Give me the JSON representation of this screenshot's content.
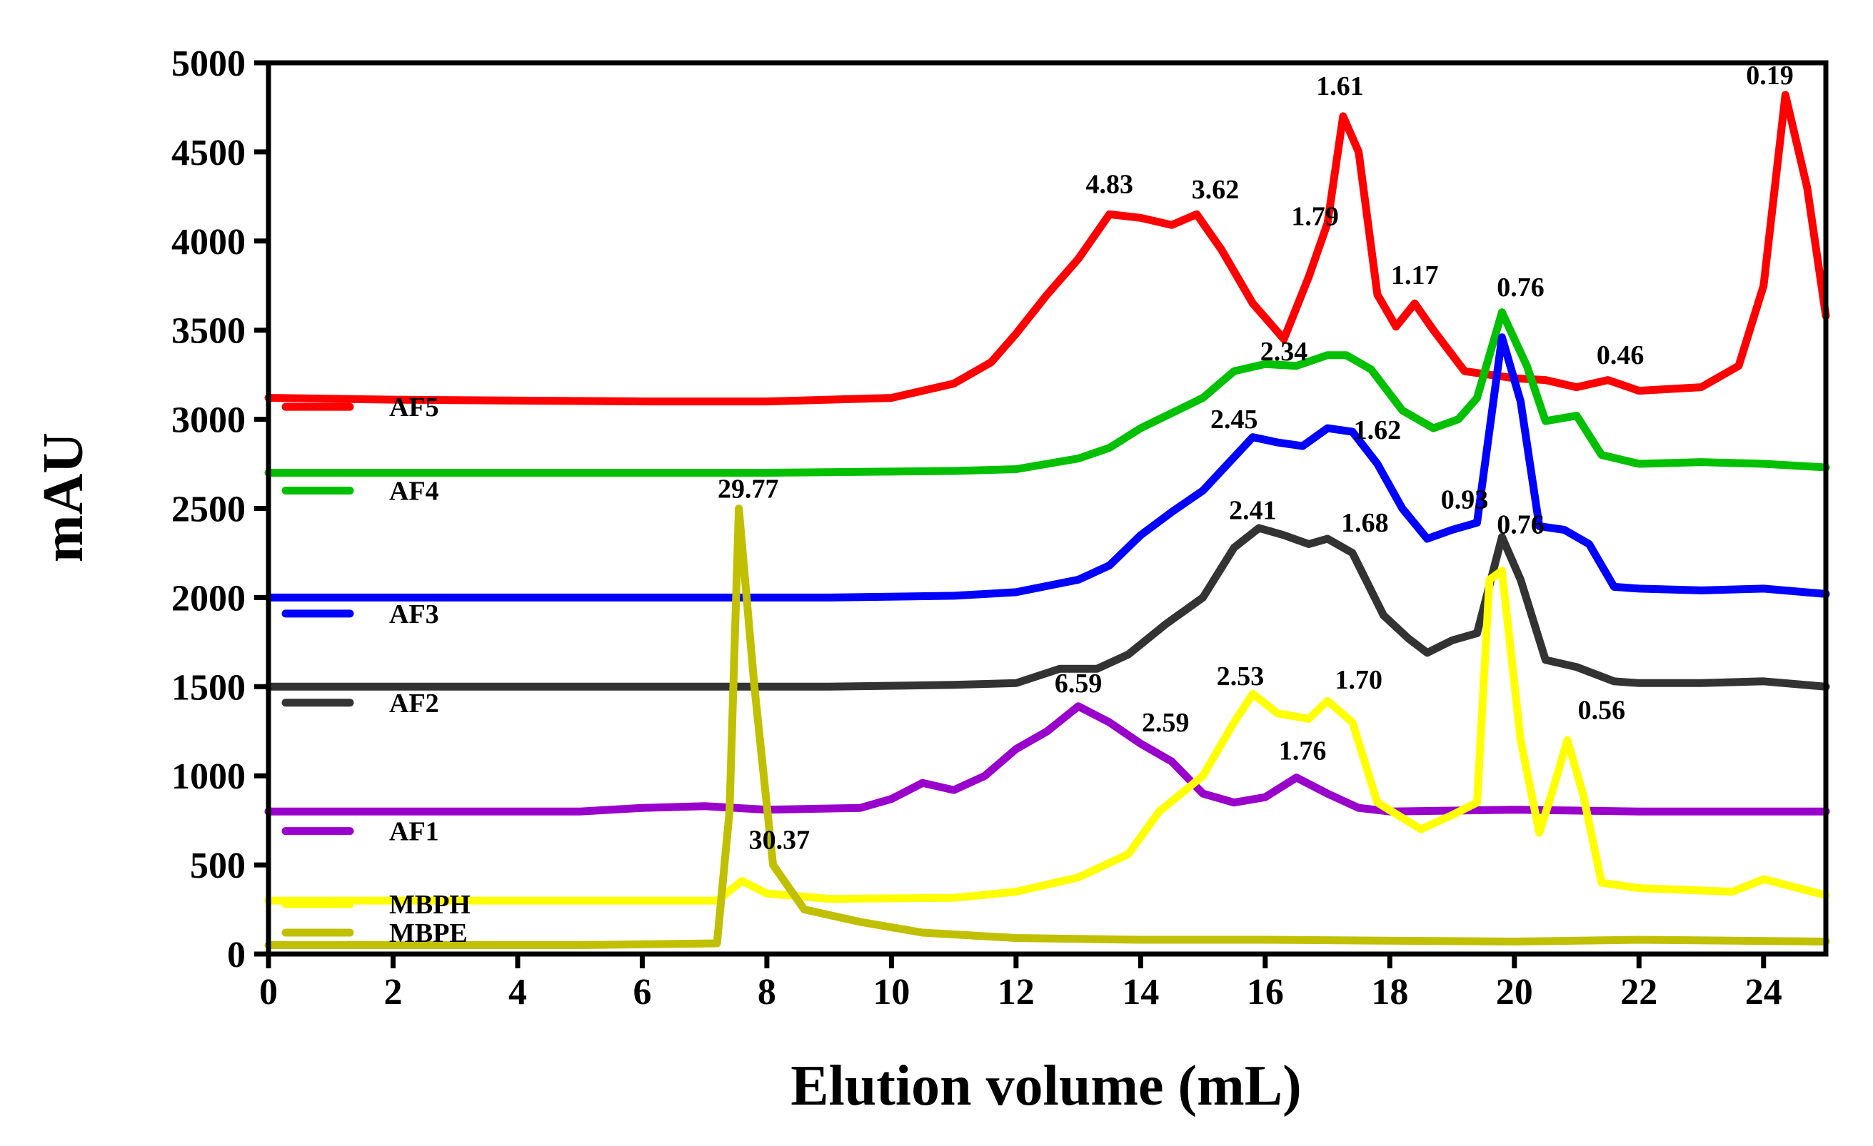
{
  "chart_data": {
    "type": "line",
    "title": "",
    "xlabel": "Elution volume (mL)",
    "ylabel": "mAU",
    "xlim": [
      0,
      25
    ],
    "ylim": [
      0,
      5000
    ],
    "xticks": [
      0,
      2,
      4,
      6,
      8,
      10,
      12,
      14,
      16,
      18,
      20,
      22,
      24
    ],
    "yticks": [
      0,
      500,
      1000,
      1500,
      2000,
      2500,
      3000,
      3500,
      4000,
      4500,
      5000
    ],
    "legend_position": "left",
    "series": [
      {
        "name": "AF5",
        "color": "#ff0000",
        "points": [
          [
            0,
            3120
          ],
          [
            2,
            3110
          ],
          [
            4,
            3105
          ],
          [
            6,
            3100
          ],
          [
            8,
            3100
          ],
          [
            10,
            3120
          ],
          [
            11,
            3200
          ],
          [
            11.6,
            3320
          ],
          [
            12,
            3480
          ],
          [
            12.5,
            3700
          ],
          [
            13,
            3900
          ],
          [
            13.5,
            4150
          ],
          [
            14,
            4130
          ],
          [
            14.5,
            4090
          ],
          [
            14.9,
            4150
          ],
          [
            15.3,
            3950
          ],
          [
            15.8,
            3650
          ],
          [
            16.3,
            3450
          ],
          [
            16.7,
            3800
          ],
          [
            17,
            4100
          ],
          [
            17.25,
            4700
          ],
          [
            17.5,
            4500
          ],
          [
            17.8,
            3700
          ],
          [
            18.1,
            3520
          ],
          [
            18.4,
            3650
          ],
          [
            18.7,
            3500
          ],
          [
            19.2,
            3270
          ],
          [
            20,
            3230
          ],
          [
            20.5,
            3220
          ],
          [
            21,
            3180
          ],
          [
            21.5,
            3220
          ],
          [
            22,
            3160
          ],
          [
            23,
            3180
          ],
          [
            23.6,
            3300
          ],
          [
            24,
            3750
          ],
          [
            24.35,
            4820
          ],
          [
            24.7,
            4300
          ],
          [
            25,
            3580
          ]
        ]
      },
      {
        "name": "AF4",
        "color": "#00c000",
        "points": [
          [
            0,
            2700
          ],
          [
            4,
            2700
          ],
          [
            8,
            2700
          ],
          [
            11,
            2710
          ],
          [
            12,
            2720
          ],
          [
            13,
            2780
          ],
          [
            13.5,
            2840
          ],
          [
            14,
            2950
          ],
          [
            15,
            3120
          ],
          [
            15.5,
            3270
          ],
          [
            16,
            3310
          ],
          [
            16.5,
            3300
          ],
          [
            17,
            3360
          ],
          [
            17.3,
            3360
          ],
          [
            17.7,
            3280
          ],
          [
            18.2,
            3050
          ],
          [
            18.7,
            2950
          ],
          [
            19.1,
            3000
          ],
          [
            19.4,
            3120
          ],
          [
            19.8,
            3600
          ],
          [
            20.2,
            3300
          ],
          [
            20.5,
            2990
          ],
          [
            21,
            3020
          ],
          [
            21.4,
            2800
          ],
          [
            22,
            2750
          ],
          [
            23,
            2760
          ],
          [
            24,
            2750
          ],
          [
            25,
            2730
          ]
        ]
      },
      {
        "name": "AF3",
        "color": "#0000ff",
        "points": [
          [
            0,
            2000
          ],
          [
            6,
            2000
          ],
          [
            9,
            2000
          ],
          [
            11,
            2010
          ],
          [
            12,
            2030
          ],
          [
            13,
            2100
          ],
          [
            13.5,
            2180
          ],
          [
            14,
            2350
          ],
          [
            14.5,
            2480
          ],
          [
            15,
            2600
          ],
          [
            15.8,
            2900
          ],
          [
            16.2,
            2870
          ],
          [
            16.6,
            2850
          ],
          [
            17,
            2950
          ],
          [
            17.4,
            2930
          ],
          [
            17.8,
            2750
          ],
          [
            18.2,
            2500
          ],
          [
            18.6,
            2330
          ],
          [
            19,
            2380
          ],
          [
            19.4,
            2420
          ],
          [
            19.8,
            3460
          ],
          [
            20.1,
            3100
          ],
          [
            20.4,
            2400
          ],
          [
            20.8,
            2380
          ],
          [
            21.2,
            2300
          ],
          [
            21.6,
            2060
          ],
          [
            22,
            2050
          ],
          [
            23,
            2040
          ],
          [
            24,
            2050
          ],
          [
            25,
            2020
          ]
        ]
      },
      {
        "name": "AF2",
        "color": "#333333",
        "points": [
          [
            0,
            1500
          ],
          [
            6,
            1500
          ],
          [
            9,
            1500
          ],
          [
            11,
            1510
          ],
          [
            12,
            1520
          ],
          [
            12.7,
            1600
          ],
          [
            13.3,
            1600
          ],
          [
            13.8,
            1680
          ],
          [
            14.4,
            1850
          ],
          [
            15,
            2000
          ],
          [
            15.5,
            2280
          ],
          [
            15.9,
            2390
          ],
          [
            16.3,
            2350
          ],
          [
            16.7,
            2300
          ],
          [
            17,
            2330
          ],
          [
            17.4,
            2250
          ],
          [
            17.9,
            1900
          ],
          [
            18.3,
            1770
          ],
          [
            18.6,
            1690
          ],
          [
            19,
            1760
          ],
          [
            19.4,
            1800
          ],
          [
            19.8,
            2340
          ],
          [
            20.1,
            2100
          ],
          [
            20.5,
            1650
          ],
          [
            21,
            1610
          ],
          [
            21.6,
            1530
          ],
          [
            22,
            1520
          ],
          [
            23,
            1520
          ],
          [
            24,
            1530
          ],
          [
            25,
            1500
          ]
        ]
      },
      {
        "name": "AF1",
        "color": "#9900cc",
        "points": [
          [
            0,
            800
          ],
          [
            5,
            800
          ],
          [
            6,
            820
          ],
          [
            7,
            830
          ],
          [
            8,
            810
          ],
          [
            9.5,
            820
          ],
          [
            10,
            870
          ],
          [
            10.5,
            960
          ],
          [
            11,
            920
          ],
          [
            11.5,
            1000
          ],
          [
            12,
            1150
          ],
          [
            12.5,
            1250
          ],
          [
            13,
            1390
          ],
          [
            13.5,
            1300
          ],
          [
            14,
            1180
          ],
          [
            14.5,
            1080
          ],
          [
            15,
            900
          ],
          [
            15.5,
            850
          ],
          [
            16,
            880
          ],
          [
            16.5,
            990
          ],
          [
            17,
            900
          ],
          [
            17.5,
            820
          ],
          [
            18,
            800
          ],
          [
            20,
            810
          ],
          [
            22,
            800
          ],
          [
            25,
            800
          ]
        ]
      },
      {
        "name": "MBPH",
        "color": "#ffff00",
        "points": [
          [
            0,
            300
          ],
          [
            6,
            300
          ],
          [
            7.2,
            300
          ],
          [
            7.6,
            410
          ],
          [
            8,
            340
          ],
          [
            9,
            310
          ],
          [
            11,
            315
          ],
          [
            12,
            350
          ],
          [
            13,
            430
          ],
          [
            13.8,
            560
          ],
          [
            14.3,
            800
          ],
          [
            15,
            1000
          ],
          [
            15.5,
            1300
          ],
          [
            15.8,
            1460
          ],
          [
            16.2,
            1350
          ],
          [
            16.7,
            1320
          ],
          [
            17,
            1420
          ],
          [
            17.4,
            1300
          ],
          [
            17.8,
            850
          ],
          [
            18.5,
            700
          ],
          [
            19,
            780
          ],
          [
            19.4,
            850
          ],
          [
            19.6,
            2100
          ],
          [
            19.8,
            2150
          ],
          [
            20.1,
            1200
          ],
          [
            20.4,
            680
          ],
          [
            20.6,
            900
          ],
          [
            20.85,
            1200
          ],
          [
            21.1,
            900
          ],
          [
            21.4,
            400
          ],
          [
            22,
            370
          ],
          [
            23.5,
            350
          ],
          [
            24,
            420
          ],
          [
            25,
            330
          ]
        ]
      },
      {
        "name": "MBPE",
        "color": "#c0c000",
        "points": [
          [
            0,
            50
          ],
          [
            5,
            50
          ],
          [
            7.2,
            60
          ],
          [
            7.4,
            800
          ],
          [
            7.55,
            2500
          ],
          [
            7.8,
            1500
          ],
          [
            8.1,
            500
          ],
          [
            8.6,
            250
          ],
          [
            9.5,
            180
          ],
          [
            10.5,
            120
          ],
          [
            12,
            90
          ],
          [
            14,
            80
          ],
          [
            16,
            80
          ],
          [
            20,
            70
          ],
          [
            22,
            80
          ],
          [
            25,
            70
          ]
        ]
      }
    ],
    "annotations": [
      {
        "text": "4.83",
        "x": 13.5,
        "y": 4270
      },
      {
        "text": "3.62",
        "x": 15.2,
        "y": 4240
      },
      {
        "text": "1.79",
        "x": 16.8,
        "y": 4090
      },
      {
        "text": "1.61",
        "x": 17.2,
        "y": 4820
      },
      {
        "text": "1.17",
        "x": 18.4,
        "y": 3760
      },
      {
        "text": "0.76",
        "x": 20.1,
        "y": 3690
      },
      {
        "text": "0.46",
        "x": 21.7,
        "y": 3310
      },
      {
        "text": "0.19",
        "x": 24.1,
        "y": 4880
      },
      {
        "text": "2.34",
        "x": 16.3,
        "y": 3330
      },
      {
        "text": "2.45",
        "x": 15.5,
        "y": 2950
      },
      {
        "text": "1.62",
        "x": 17.8,
        "y": 2890
      },
      {
        "text": "2.41",
        "x": 15.8,
        "y": 2440
      },
      {
        "text": "1.68",
        "x": 17.6,
        "y": 2370
      },
      {
        "text": "0.93",
        "x": 19.2,
        "y": 2500
      },
      {
        "text": "0.76",
        "x": 20.1,
        "y": 2360
      },
      {
        "text": "29.77",
        "x": 7.7,
        "y": 2560
      },
      {
        "text": "30.37",
        "x": 8.2,
        "y": 590
      },
      {
        "text": "6.59",
        "x": 13.0,
        "y": 1470
      },
      {
        "text": "2.59",
        "x": 14.4,
        "y": 1250
      },
      {
        "text": "2.53",
        "x": 15.6,
        "y": 1510
      },
      {
        "text": "1.70",
        "x": 17.5,
        "y": 1490
      },
      {
        "text": "1.76",
        "x": 16.6,
        "y": 1090
      },
      {
        "text": "0.56",
        "x": 21.4,
        "y": 1320
      }
    ]
  }
}
